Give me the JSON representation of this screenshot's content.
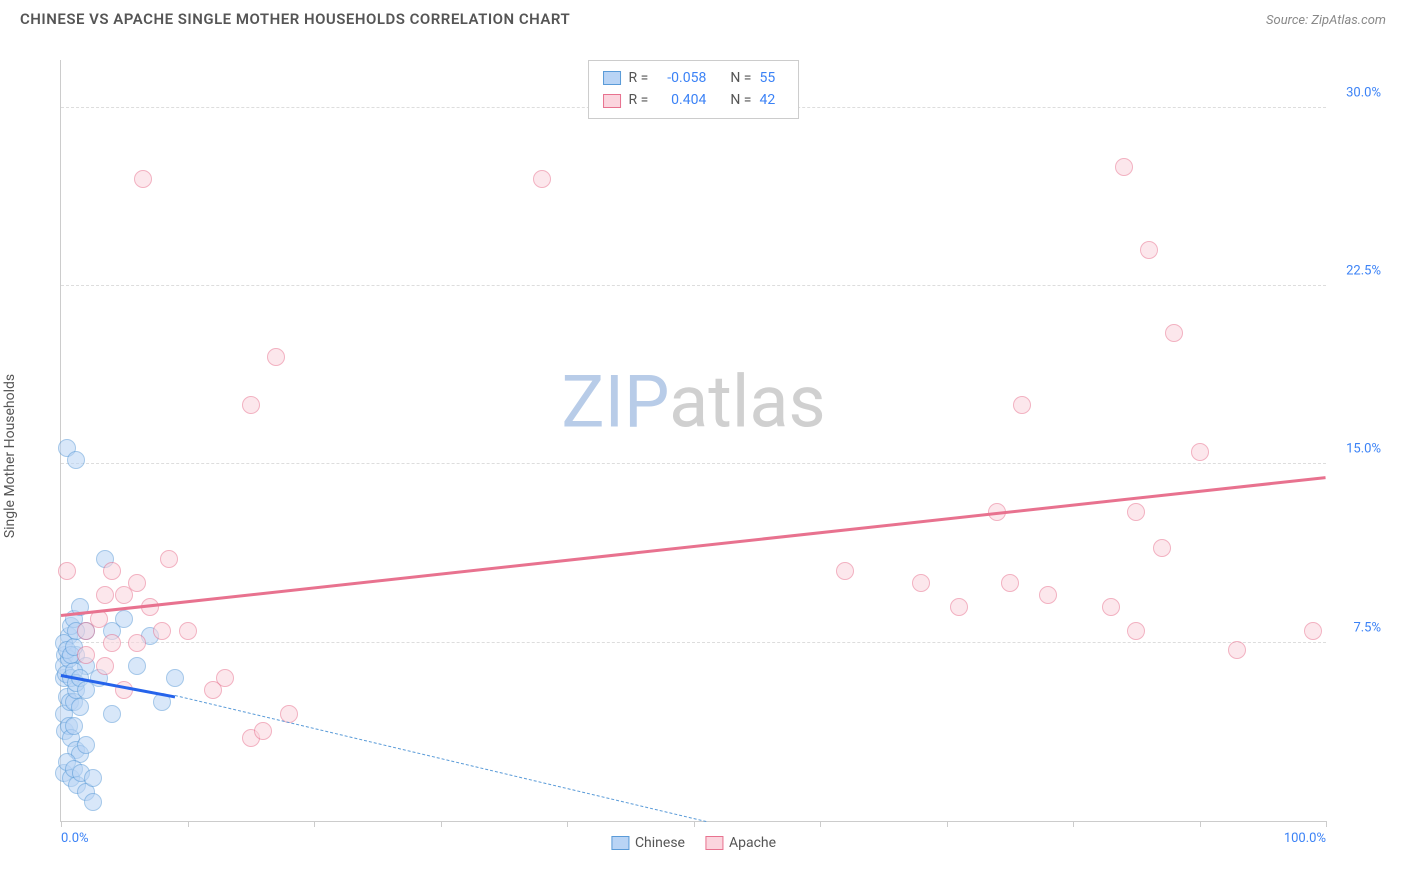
{
  "header": {
    "title": "CHINESE VS APACHE SINGLE MOTHER HOUSEHOLDS CORRELATION CHART",
    "source": "Source: ZipAtlas.com"
  },
  "watermark": {
    "part1": "ZIP",
    "part1_color": "#b8cce8",
    "part2": "atlas",
    "part2_color": "#d0d0d0"
  },
  "chart": {
    "type": "scatter",
    "background_color": "#ffffff",
    "grid_color": "#dddddd",
    "axis_color": "#cccccc",
    "ylabel": "Single Mother Households",
    "label_fontsize": 14,
    "label_color": "#555555",
    "tick_color": "#3b82f6",
    "xlim": [
      0,
      100
    ],
    "ylim": [
      0,
      32
    ],
    "xtick_positions": [
      0,
      10,
      20,
      30,
      40,
      50,
      60,
      70,
      80,
      90,
      100
    ],
    "xtick_labels": {
      "0": "0.0%",
      "100": "100.0%"
    },
    "ytick_positions": [
      7.5,
      15.0,
      22.5,
      30.0
    ],
    "ytick_labels": [
      "7.5%",
      "15.0%",
      "22.5%",
      "30.0%"
    ],
    "marker_radius": 9,
    "marker_border_width": 1.5,
    "series": [
      {
        "name": "Chinese",
        "fill": "#b9d4f5",
        "stroke": "#5a9bd8",
        "fill_opacity": 0.55,
        "points": [
          [
            0.5,
            15.7
          ],
          [
            1.2,
            15.2
          ],
          [
            0.2,
            6.0
          ],
          [
            0.3,
            7.0
          ],
          [
            0.6,
            7.8
          ],
          [
            0.8,
            8.2
          ],
          [
            1.0,
            8.5
          ],
          [
            1.2,
            7.0
          ],
          [
            1.5,
            9.0
          ],
          [
            2.0,
            8.0
          ],
          [
            2.0,
            6.5
          ],
          [
            0.2,
            4.5
          ],
          [
            0.5,
            5.2
          ],
          [
            0.7,
            5.0
          ],
          [
            1.0,
            5.0
          ],
          [
            1.2,
            5.5
          ],
          [
            1.5,
            4.8
          ],
          [
            0.3,
            3.8
          ],
          [
            0.6,
            4.0
          ],
          [
            0.8,
            3.5
          ],
          [
            1.0,
            4.0
          ],
          [
            1.2,
            3.0
          ],
          [
            1.5,
            2.8
          ],
          [
            2.0,
            3.2
          ],
          [
            0.2,
            2.0
          ],
          [
            0.5,
            2.5
          ],
          [
            0.8,
            1.8
          ],
          [
            1.0,
            2.2
          ],
          [
            1.3,
            1.5
          ],
          [
            1.6,
            2.0
          ],
          [
            2.0,
            1.2
          ],
          [
            2.5,
            1.8
          ],
          [
            0.2,
            6.5
          ],
          [
            0.4,
            6.2
          ],
          [
            0.6,
            6.8
          ],
          [
            0.8,
            6.0
          ],
          [
            1.0,
            6.3
          ],
          [
            1.2,
            5.8
          ],
          [
            1.5,
            6.0
          ],
          [
            2.0,
            5.5
          ],
          [
            0.2,
            7.5
          ],
          [
            0.5,
            7.2
          ],
          [
            0.8,
            7.0
          ],
          [
            1.0,
            7.3
          ],
          [
            1.2,
            8.0
          ],
          [
            3.5,
            11.0
          ],
          [
            4.0,
            8.0
          ],
          [
            5.0,
            8.5
          ],
          [
            6.0,
            6.5
          ],
          [
            7.0,
            7.8
          ],
          [
            8.0,
            5.0
          ],
          [
            9.0,
            6.0
          ],
          [
            3.0,
            6.0
          ],
          [
            4.0,
            4.5
          ],
          [
            2.5,
            0.8
          ]
        ],
        "trend": {
          "x1": 0,
          "y1": 6.2,
          "x2": 9,
          "y2": 5.3,
          "color": "#2563eb",
          "width": 2.5
        },
        "trend_ext": {
          "x1": 9,
          "y1": 5.3,
          "x2": 51,
          "y2": 0,
          "color": "#5a9bd8"
        }
      },
      {
        "name": "Apache",
        "fill": "#fbd5de",
        "stroke": "#e8728f",
        "fill_opacity": 0.55,
        "points": [
          [
            6.5,
            27.0
          ],
          [
            17.0,
            19.5
          ],
          [
            15.0,
            17.5
          ],
          [
            38.0,
            27.0
          ],
          [
            0.5,
            10.5
          ],
          [
            2.0,
            8.0
          ],
          [
            3.0,
            8.5
          ],
          [
            4.0,
            7.5
          ],
          [
            3.5,
            9.5
          ],
          [
            6.0,
            10.0
          ],
          [
            7.0,
            9.0
          ],
          [
            8.0,
            8.0
          ],
          [
            13.0,
            6.0
          ],
          [
            15.0,
            3.5
          ],
          [
            16.0,
            3.8
          ],
          [
            18.0,
            4.5
          ],
          [
            8.5,
            11.0
          ],
          [
            10.0,
            8.0
          ],
          [
            12.0,
            5.5
          ],
          [
            5.0,
            9.5
          ],
          [
            4.0,
            10.5
          ],
          [
            6.0,
            7.5
          ],
          [
            2.0,
            7.0
          ],
          [
            3.5,
            6.5
          ],
          [
            5.0,
            5.5
          ],
          [
            62.0,
            10.5
          ],
          [
            68.0,
            10.0
          ],
          [
            71.0,
            9.0
          ],
          [
            74.0,
            13.0
          ],
          [
            75.0,
            10.0
          ],
          [
            76.0,
            17.5
          ],
          [
            78.0,
            9.5
          ],
          [
            83.0,
            9.0
          ],
          [
            85.0,
            13.0
          ],
          [
            85.0,
            8.0
          ],
          [
            87.0,
            11.5
          ],
          [
            88.0,
            20.5
          ],
          [
            84.0,
            27.5
          ],
          [
            86.0,
            24.0
          ],
          [
            90.0,
            15.5
          ],
          [
            93.0,
            7.2
          ],
          [
            99.0,
            8.0
          ]
        ],
        "trend": {
          "x1": 0,
          "y1": 8.7,
          "x2": 100,
          "y2": 14.5,
          "color": "#e8728f",
          "width": 2.5
        }
      }
    ],
    "legend_top": {
      "rows": [
        {
          "swatch_fill": "#b9d4f5",
          "swatch_stroke": "#5a9bd8",
          "r_label": "R =",
          "r_val": "-0.058",
          "n_label": "N =",
          "n_val": "55"
        },
        {
          "swatch_fill": "#fbd5de",
          "swatch_stroke": "#e8728f",
          "r_label": "R =",
          "r_val": " 0.404",
          "n_label": "N =",
          "n_val": "42"
        }
      ]
    },
    "legend_bottom": {
      "items": [
        {
          "swatch_fill": "#b9d4f5",
          "swatch_stroke": "#5a9bd8",
          "label": "Chinese"
        },
        {
          "swatch_fill": "#fbd5de",
          "swatch_stroke": "#e8728f",
          "label": "Apache"
        }
      ]
    }
  }
}
